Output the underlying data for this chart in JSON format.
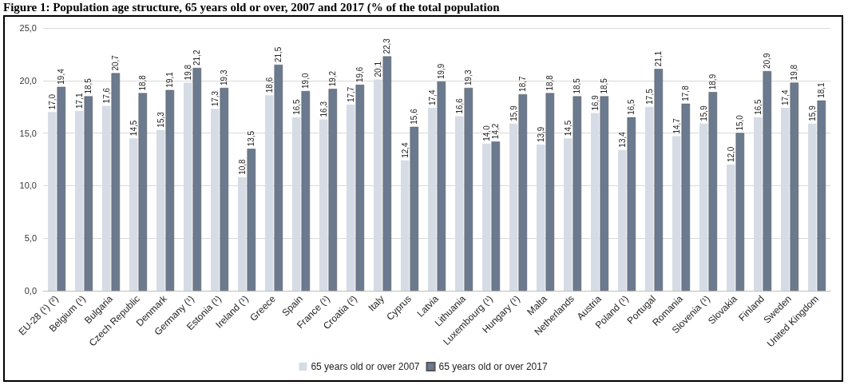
{
  "chart_data": {
    "type": "bar",
    "title": "Figure 1: Population age structure, 65 years old or over, 2007 and 2017 (% of the total population",
    "categories": [
      "EU-28 (¹) (²)",
      "Belgium (¹)",
      "Bulgaria",
      "Czech Republic",
      "Denmark",
      "Germany (¹)",
      "Estonia (¹)",
      "Ireland (¹)",
      "Greece",
      "Spain",
      "France (¹)",
      "Croatia (²)",
      "Italy",
      "Cyprus",
      "Latvia",
      "Lithuania",
      "Luxembourg (¹)",
      "Hungary (¹)",
      "Malta",
      "Netherlands",
      "Austria",
      "Poland (¹)",
      "Portugal",
      "Romania",
      "Slovenia (¹)",
      "Slovakia",
      "Finland",
      "Sweden",
      "United Kingdom"
    ],
    "series": [
      {
        "name": "65 years old or over 2007",
        "color": "#d6dce5",
        "values": [
          17.0,
          17.1,
          17.6,
          14.5,
          15.3,
          19.8,
          17.3,
          10.8,
          18.6,
          16.5,
          16.3,
          17.7,
          20.1,
          12.4,
          17.4,
          16.6,
          14.0,
          15.9,
          13.9,
          14.5,
          16.9,
          13.4,
          17.5,
          14.7,
          15.9,
          12.0,
          16.5,
          17.4,
          15.9
        ],
        "value_labels": [
          "17,0",
          "17,1",
          "17,6",
          "14,5",
          "15,3",
          "19,8",
          "17,3",
          "10,8",
          "18,6",
          "16,5",
          "16,3",
          "17,7",
          "20,1",
          "12,4",
          "17,4",
          "16,6",
          "14,0",
          "15,9",
          "13,9",
          "14,5",
          "16,9",
          "13,4",
          "17,5",
          "14,7",
          "15,9",
          "12,0",
          "16,5",
          "17,4",
          "15,9"
        ]
      },
      {
        "name": "65 years old or over 2017",
        "color": "#6b7a8f",
        "values": [
          19.4,
          18.5,
          20.7,
          18.8,
          19.1,
          21.2,
          19.3,
          13.5,
          21.5,
          19.0,
          19.2,
          19.6,
          22.3,
          15.6,
          19.9,
          19.3,
          14.2,
          18.7,
          18.8,
          18.5,
          18.5,
          16.5,
          21.1,
          17.8,
          18.9,
          15.0,
          20.9,
          19.8,
          18.1
        ],
        "value_labels": [
          "19,4",
          "18,5",
          "20,7",
          "18,8",
          "19,1",
          "21,2",
          "19,3",
          "13,5",
          "21,5",
          "19,0",
          "19,2",
          "19,6",
          "22,3",
          "15,6",
          "19,9",
          "19,3",
          "14,2",
          "18,7",
          "18,8",
          "18,5",
          "18,5",
          "16,5",
          "21,1",
          "17,8",
          "18,9",
          "15,0",
          "20,9",
          "19,8",
          "18,1"
        ]
      }
    ],
    "ylim": [
      0,
      25
    ],
    "yticks": [
      {
        "value": 0,
        "label": "0,0"
      },
      {
        "value": 5,
        "label": "5,0"
      },
      {
        "value": 10,
        "label": "10,0"
      },
      {
        "value": 15,
        "label": "15,0"
      },
      {
        "value": 20,
        "label": "20,0"
      },
      {
        "value": 25,
        "label": "25,0"
      }
    ],
    "grid": "y",
    "legend": "bottom"
  }
}
